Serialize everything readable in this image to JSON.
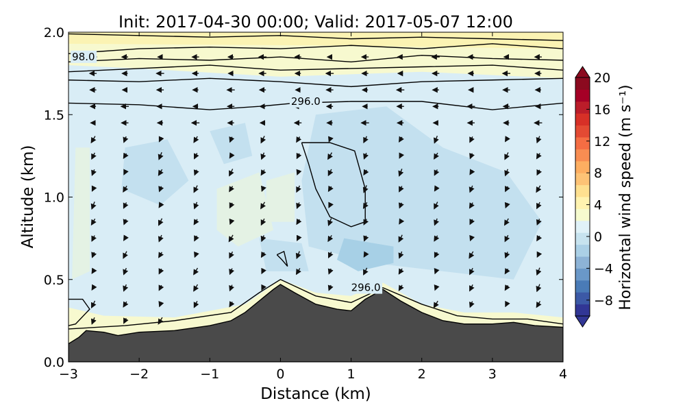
{
  "title": "Init: 2017-04-30 00:00; Valid: 2017-05-07 12:00",
  "colors": {
    "terrain": "#4a4a4a",
    "contour": "#000000",
    "arrow": "#111111",
    "pale_blue": "#d9edf6",
    "light_blue": "#c3e0ef",
    "mid_blue": "#a7d0e6",
    "pale_yellow": "#f7f9cf",
    "pale_green": "#e4f2e4",
    "yellow": "#fbf3b3"
  },
  "chart_data": {
    "type": "contourf",
    "xlabel": "Distance (km)",
    "ylabel": "Altitude (km)",
    "xlim": [
      -3,
      4
    ],
    "ylim": [
      0,
      2
    ],
    "xticks": [
      "−3",
      "−2",
      "−1",
      "0",
      "1",
      "2",
      "3",
      "4"
    ],
    "yticks": [
      "0.0",
      "0.5",
      "1.0",
      "1.5",
      "2.0"
    ],
    "terrain_profile": [
      [
        -3.0,
        0.11
      ],
      [
        -2.85,
        0.15
      ],
      [
        -2.75,
        0.19
      ],
      [
        -2.5,
        0.18
      ],
      [
        -2.3,
        0.16
      ],
      [
        -2.0,
        0.18
      ],
      [
        -1.5,
        0.19
      ],
      [
        -1.0,
        0.22
      ],
      [
        -0.7,
        0.25
      ],
      [
        -0.5,
        0.3
      ],
      [
        -0.3,
        0.37
      ],
      [
        -0.1,
        0.44
      ],
      [
        0.0,
        0.47
      ],
      [
        0.2,
        0.42
      ],
      [
        0.5,
        0.35
      ],
      [
        0.8,
        0.32
      ],
      [
        1.0,
        0.31
      ],
      [
        1.2,
        0.38
      ],
      [
        1.45,
        0.44
      ],
      [
        1.7,
        0.37
      ],
      [
        2.0,
        0.3
      ],
      [
        2.3,
        0.25
      ],
      [
        2.6,
        0.23
      ],
      [
        3.0,
        0.23
      ],
      [
        3.3,
        0.24
      ],
      [
        3.6,
        0.22
      ],
      [
        4.0,
        0.21
      ]
    ],
    "contour_labels": [
      {
        "text": "98.0",
        "x": -2.95,
        "y": 1.83
      },
      {
        "text": "296.0",
        "x": 0.15,
        "y": 1.56
      },
      {
        "text": "296.0",
        "x": 1.0,
        "y": 0.43
      }
    ],
    "colorbar": {
      "label": "Horizontal wind speed (m s⁻¹)",
      "min": -10,
      "max": 20,
      "ticks": [
        "20",
        "16",
        "12",
        "8",
        "4",
        "0",
        "−4",
        "−8"
      ],
      "tick_values": [
        20,
        16,
        12,
        8,
        4,
        0,
        -4,
        -8
      ],
      "colors": [
        "#313695",
        "#3c59a6",
        "#4a7bb7",
        "#6a98c8",
        "#8db3d6",
        "#abd0e6",
        "#c7e3ef",
        "#e0f2f8",
        "#f6fbce",
        "#fff3b0",
        "#fee090",
        "#fdc376",
        "#fdae61",
        "#f88d52",
        "#f46d43",
        "#e34a33",
        "#d73027",
        "#bb1d2a",
        "#a50026",
        "#8b0a1f"
      ]
    }
  }
}
